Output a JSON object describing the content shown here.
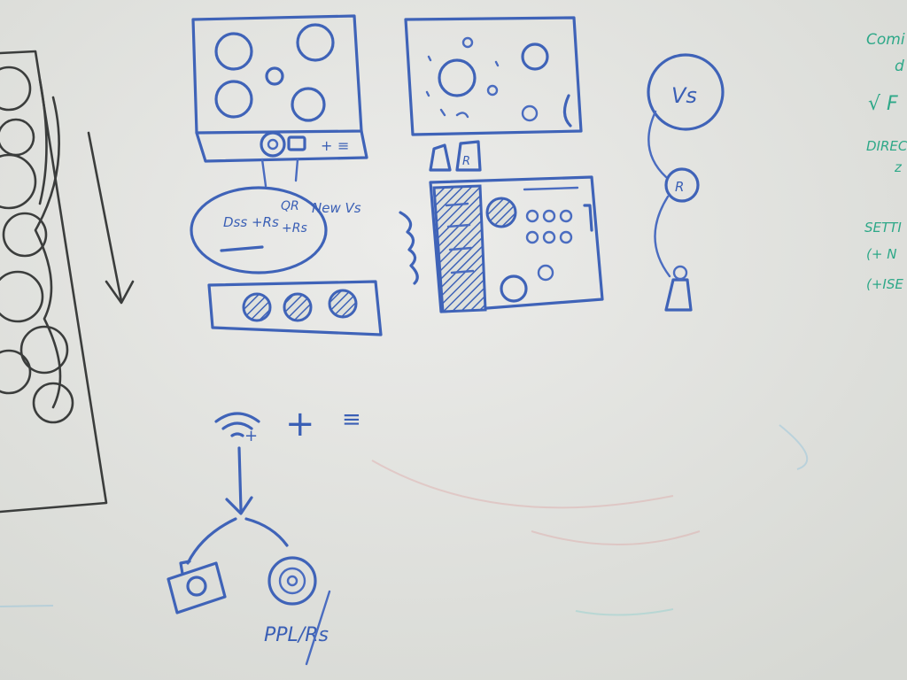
{
  "sketch_labels": {
    "menu_popup_left": "Dss +Rs",
    "menu_popup_qr": "QR",
    "menu_popup_plus": "+Rs",
    "menu_popup_new": "New Vs",
    "profile_vs": "Vs",
    "profile_r": "R",
    "bottom_caption": "PPL/Rs",
    "icon_plus": "+",
    "icon_menu": "≡"
  },
  "side_notes": {
    "line1": "Comi",
    "line2": "d",
    "line3": "√ F",
    "line4": "DIREC",
    "line5": "z",
    "line6": "SETTI",
    "line7": "(+ N",
    "line8": "(+ISE"
  },
  "colors": {
    "board": "#dfe1dc",
    "blue_marker": "#3f63b8",
    "black_marker": "#3b3d3c",
    "green_marker": "#2ea888"
  }
}
